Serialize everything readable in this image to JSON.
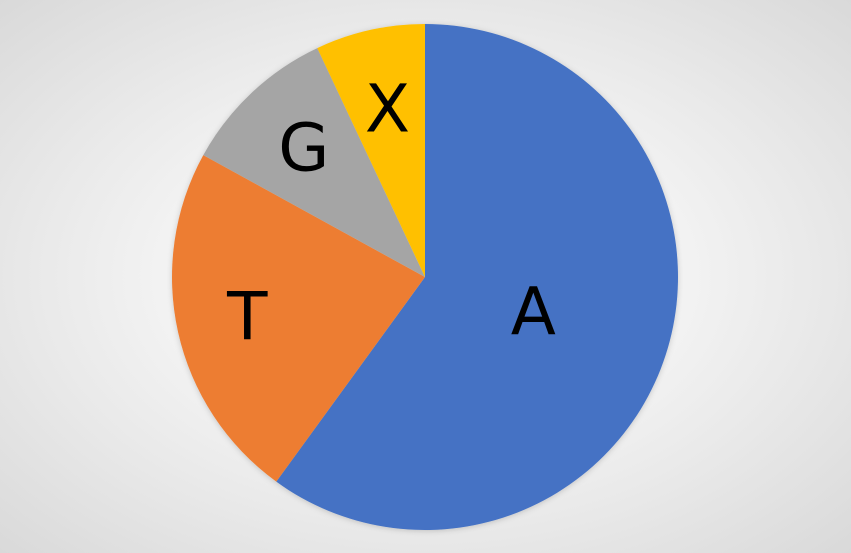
{
  "chart_data": {
    "type": "pie",
    "title": "",
    "categories": [
      "A",
      "T",
      "G",
      "X"
    ],
    "values": [
      60,
      23,
      10,
      7
    ],
    "colors": [
      "#4472c4",
      "#ed7d31",
      "#a5a5a5",
      "#ffc000"
    ],
    "start_angle_deg": 0,
    "direction": "clockwise",
    "labels_inside": true,
    "legend": "none"
  }
}
